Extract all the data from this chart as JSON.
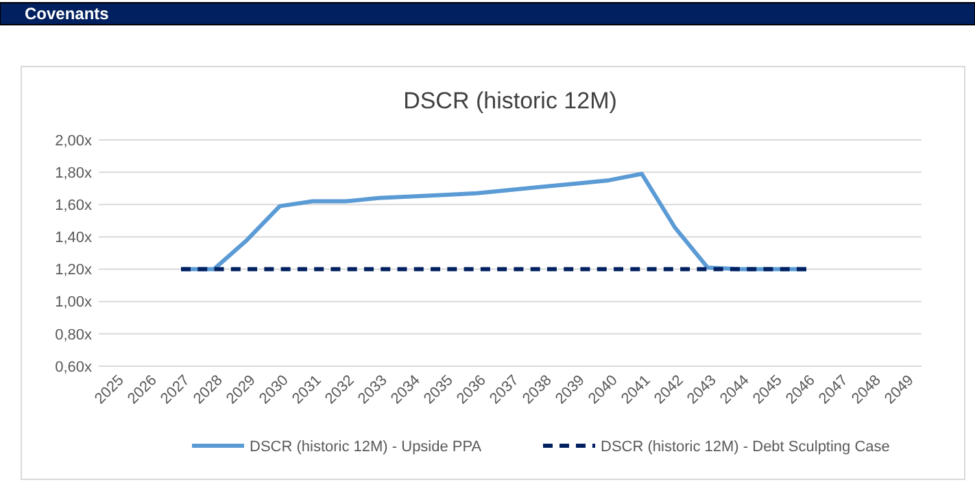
{
  "chart_data": {
    "type": "line",
    "title": "DSCR (historic 12M)",
    "annotations": [
      "Covenants"
    ],
    "categories": [
      "2025",
      "2026",
      "2027",
      "2028",
      "2029",
      "2030",
      "2031",
      "2032",
      "2033",
      "2034",
      "2035",
      "2036",
      "2037",
      "2038",
      "2039",
      "2040",
      "2041",
      "2042",
      "2043",
      "2044",
      "2045",
      "2046",
      "2047",
      "2048",
      "2049"
    ],
    "series": [
      {
        "name": "DSCR (historic 12M) - Upside PPA",
        "color": "#5b9bd5",
        "line_style": "solid",
        "values": [
          null,
          null,
          1.2,
          1.2,
          1.38,
          1.59,
          1.62,
          1.62,
          1.64,
          1.65,
          1.66,
          1.67,
          1.69,
          1.71,
          1.73,
          1.75,
          1.79,
          1.46,
          1.21,
          1.2,
          1.2,
          1.2,
          null,
          null,
          null
        ]
      },
      {
        "name": "DSCR (historic 12M) - Debt Sculpting Case",
        "color": "#002060",
        "line_style": "dashed",
        "values": [
          null,
          null,
          1.2,
          1.2,
          1.2,
          1.2,
          1.2,
          1.2,
          1.2,
          1.2,
          1.2,
          1.2,
          1.2,
          1.2,
          1.2,
          1.2,
          1.2,
          1.2,
          1.2,
          1.2,
          1.2,
          1.2,
          null,
          null,
          null
        ]
      }
    ],
    "ylim": [
      0.6,
      2.0
    ],
    "yticks": [
      {
        "value": 0.6,
        "label": "0,60x"
      },
      {
        "value": 0.8,
        "label": "0,80x"
      },
      {
        "value": 1.0,
        "label": "1,00x"
      },
      {
        "value": 1.2,
        "label": "1,20x"
      },
      {
        "value": 1.4,
        "label": "1,40x"
      },
      {
        "value": 1.6,
        "label": "1,60x"
      },
      {
        "value": 1.8,
        "label": "1,80x"
      },
      {
        "value": 2.0,
        "label": "2,00x"
      }
    ],
    "grid": "y",
    "legend": "bottom",
    "marker": "none"
  }
}
